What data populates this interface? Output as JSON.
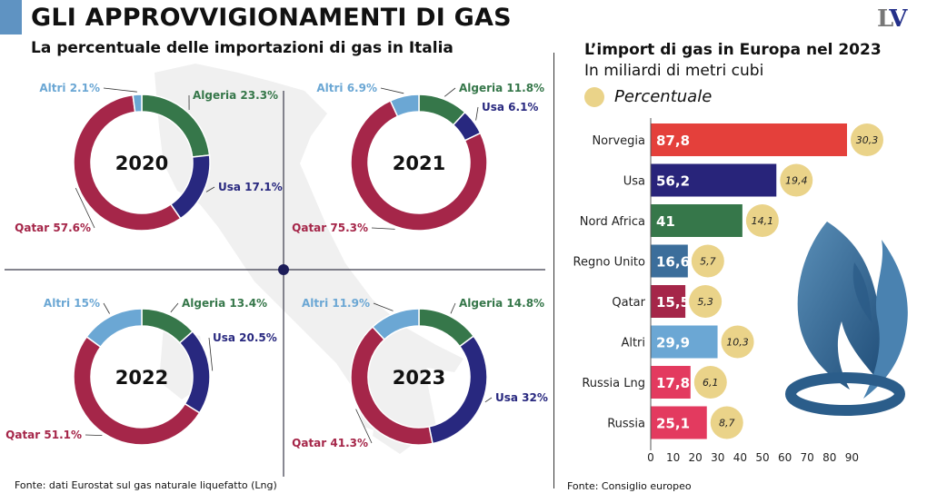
{
  "header": {
    "title": "GLI APPROVVIGIONAMENTI DI GAS",
    "subtitle_left": "La percentuale delle importazioni di gas in Italia",
    "logo": "LV"
  },
  "colors": {
    "algeria": "#36774a",
    "usa": "#28287f",
    "qatar": "#a52649",
    "altri": "#6ba7d4",
    "percent_dot": "#ead389"
  },
  "footer": {
    "left": "Fonte: dati Eurostat sul gas naturale liquefatto (Lng)",
    "right": "Fonte: Consiglio europeo"
  },
  "right_panel": {
    "title": "L’import di gas in Europa nel 2023",
    "subtitle": "In miliardi di metri cubi",
    "legend": "Percentuale"
  },
  "chart_data": [
    {
      "type": "pie",
      "title": "2020",
      "slices": [
        {
          "label": "Algeria",
          "value": 23.3,
          "display": "Algeria 23.3%"
        },
        {
          "label": "Usa",
          "value": 17.1,
          "display": "Usa 17.1%"
        },
        {
          "label": "Qatar",
          "value": 57.6,
          "display": "Qatar 57.6%"
        },
        {
          "label": "Altri",
          "value": 2.1,
          "display": "Altri 2.1%"
        }
      ]
    },
    {
      "type": "pie",
      "title": "2021",
      "slices": [
        {
          "label": "Algeria",
          "value": 11.8,
          "display": "Algeria 11.8%"
        },
        {
          "label": "Usa",
          "value": 6.1,
          "display": "Usa 6.1%"
        },
        {
          "label": "Qatar",
          "value": 75.3,
          "display": "Qatar 75.3%"
        },
        {
          "label": "Altri",
          "value": 6.9,
          "display": "Altri 6.9%"
        }
      ]
    },
    {
      "type": "pie",
      "title": "2022",
      "slices": [
        {
          "label": "Algeria",
          "value": 13.4,
          "display": "Algeria 13.4%"
        },
        {
          "label": "Usa",
          "value": 20.5,
          "display": "Usa 20.5%"
        },
        {
          "label": "Qatar",
          "value": 51.1,
          "display": "Qatar 51.1%"
        },
        {
          "label": "Altri",
          "value": 15,
          "display": "Altri 15%"
        }
      ]
    },
    {
      "type": "pie",
      "title": "2023",
      "slices": [
        {
          "label": "Algeria",
          "value": 14.8,
          "display": "Algeria 14.8%"
        },
        {
          "label": "Usa",
          "value": 32,
          "display": "Usa 32%"
        },
        {
          "label": "Qatar",
          "value": 41.3,
          "display": "Qatar 41.3%"
        },
        {
          "label": "Altri",
          "value": 11.9,
          "display": "Altri 11.9%"
        }
      ]
    },
    {
      "type": "bar",
      "orientation": "horizontal",
      "title": "L’import di gas in Europa nel 2023",
      "subtitle": "In miliardi di metri cubi",
      "categories": [
        "Norvegia",
        "Usa",
        "Nord Africa",
        "Regno Unito",
        "Qatar",
        "Altri",
        "Russia Lng",
        "Russia"
      ],
      "values": [
        87.8,
        56.2,
        41,
        16.6,
        15.5,
        29.9,
        17.8,
        25.1
      ],
      "value_labels": [
        "87,8",
        "56,2",
        "41",
        "16,6",
        "15,5",
        "29,9",
        "17,8",
        "25,1"
      ],
      "percent_labels": [
        "30,3",
        "19,4",
        "14,1",
        "5,7",
        "5,3",
        "10,3",
        "6,1",
        "8,7"
      ],
      "colors": [
        "#e4403b",
        "#28247a",
        "#36774a",
        "#3c6e9b",
        "#a52649",
        "#6ba7d4",
        "#e33a5f",
        "#e33a5f"
      ],
      "xlim": [
        0,
        90
      ],
      "xticks": [
        0,
        10,
        20,
        30,
        40,
        50,
        60,
        70,
        80,
        90
      ]
    }
  ]
}
